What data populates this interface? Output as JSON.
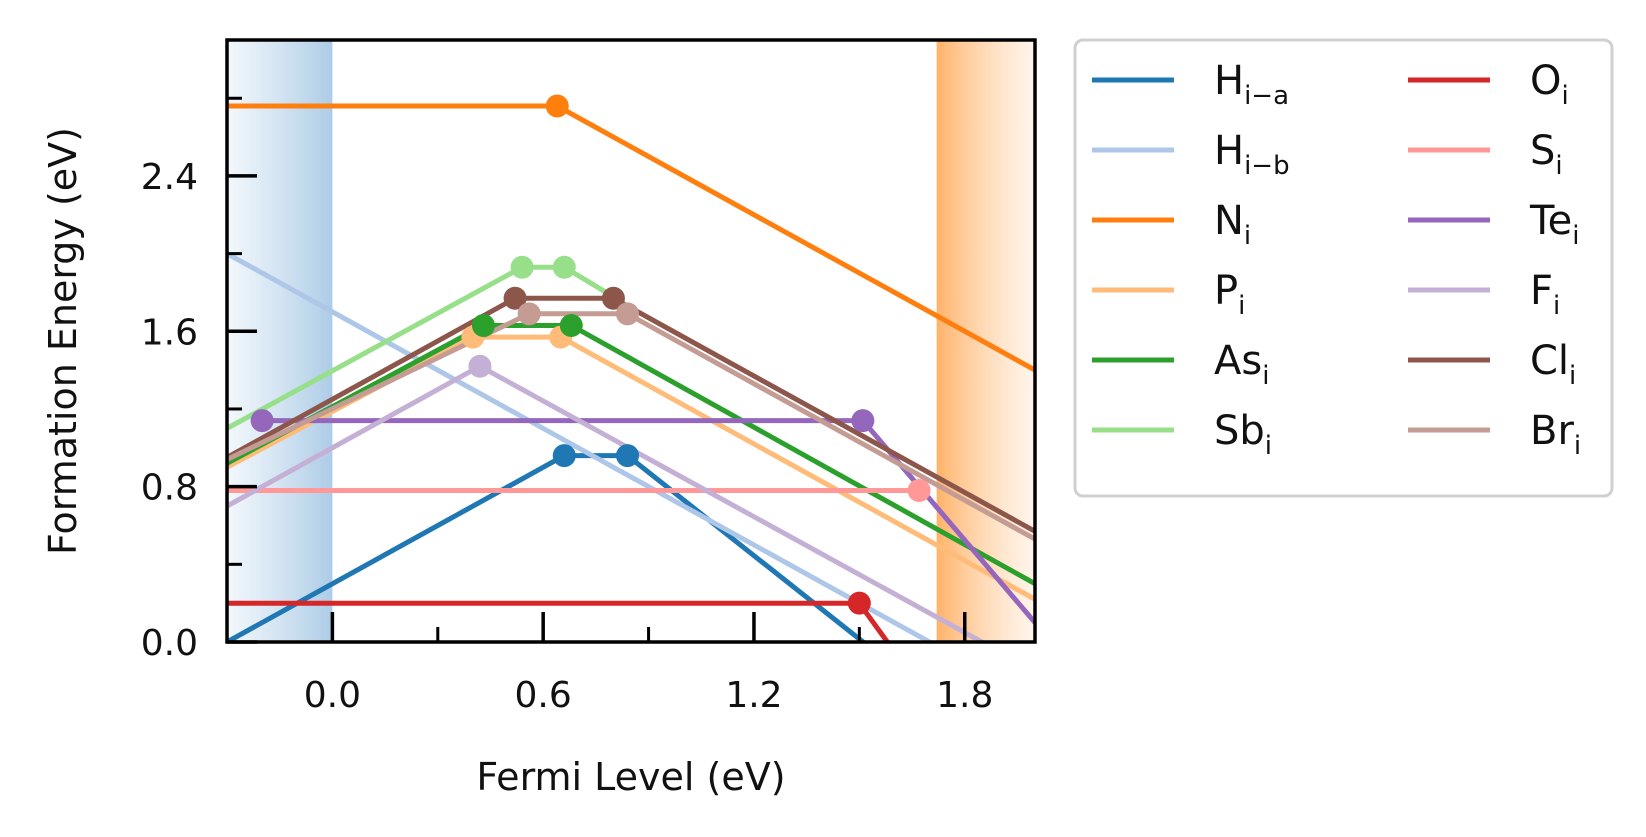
{
  "chart_data": {
    "type": "line",
    "xlabel": "Fermi Level (eV)",
    "ylabel": "Formation Energy (eV)",
    "xlim": [
      -0.3,
      2.0
    ],
    "ylim": [
      0.0,
      3.1
    ],
    "x_ticks": [
      "0.0",
      "0.6",
      "1.2",
      "1.8"
    ],
    "x_tick_values": [
      0.0,
      0.6,
      1.2,
      1.8
    ],
    "y_ticks": [
      "0.0",
      "0.8",
      "1.6",
      "2.4"
    ],
    "y_tick_values": [
      0.0,
      0.8,
      1.6,
      2.4
    ],
    "grid": false,
    "legend": "outside-right, 2 columns",
    "shaded_regions": [
      {
        "region": "valence band",
        "x": [
          -0.3,
          0.0
        ],
        "color": "#aecde7"
      },
      {
        "region": "conduction band",
        "x": [
          1.72,
          2.0
        ],
        "color": "#ffb572"
      }
    ],
    "series": [
      {
        "name": "H",
        "sub": "i−a",
        "color": "#1f77b4",
        "x": [
          -0.3,
          0.66,
          0.84,
          2.0
        ],
        "y": [
          0.0,
          0.96,
          0.96,
          -0.7
        ],
        "markers": [
          [
            0.66,
            0.96
          ],
          [
            0.84,
            0.96
          ]
        ]
      },
      {
        "name": "H",
        "sub": "i−b",
        "color": "#aec7e8",
        "x": [
          -0.3,
          2.0
        ],
        "y": [
          2.0,
          -0.3
        ],
        "markers": []
      },
      {
        "name": "N",
        "sub": "i",
        "color": "#ff7f0e",
        "x": [
          -0.3,
          0.64,
          2.0
        ],
        "y": [
          2.76,
          2.76,
          1.4
        ],
        "markers": [
          [
            0.64,
            2.76
          ]
        ]
      },
      {
        "name": "P",
        "sub": "i",
        "color": "#ffbb78",
        "x": [
          -0.3,
          0.4,
          0.65,
          2.0
        ],
        "y": [
          0.9,
          1.57,
          1.57,
          0.22
        ],
        "markers": [
          [
            0.4,
            1.57
          ],
          [
            0.65,
            1.57
          ]
        ]
      },
      {
        "name": "As",
        "sub": "i",
        "color": "#2ca02c",
        "x": [
          -0.3,
          0.43,
          0.68,
          2.0
        ],
        "y": [
          0.92,
          1.63,
          1.63,
          0.3
        ],
        "markers": [
          [
            0.43,
            1.63
          ],
          [
            0.68,
            1.63
          ]
        ]
      },
      {
        "name": "Sb",
        "sub": "i",
        "color": "#98df8a",
        "x": [
          -0.3,
          0.54,
          0.66,
          0.78
        ],
        "y": [
          1.1,
          1.93,
          1.93,
          1.8
        ],
        "markers": [
          [
            0.54,
            1.93
          ],
          [
            0.66,
            1.93
          ]
        ]
      },
      {
        "name": "O",
        "sub": "i",
        "color": "#d62728",
        "x": [
          -0.3,
          1.5,
          1.7
        ],
        "y": [
          0.2,
          0.2,
          -0.3
        ],
        "markers": [
          [
            1.5,
            0.2
          ]
        ]
      },
      {
        "name": "S",
        "sub": "i",
        "color": "#ff9896",
        "x": [
          -0.3,
          1.67
        ],
        "y": [
          0.78,
          0.78
        ],
        "markers": [
          [
            1.67,
            0.78
          ]
        ]
      },
      {
        "name": "Te",
        "sub": "i",
        "color": "#9467bd",
        "x": [
          -0.2,
          1.51,
          2.0
        ],
        "y": [
          1.14,
          1.14,
          0.1
        ],
        "markers": [
          [
            -0.2,
            1.14
          ],
          [
            1.51,
            1.14
          ]
        ]
      },
      {
        "name": "F",
        "sub": "i",
        "color": "#c5b0d5",
        "x": [
          -0.3,
          0.42,
          2.0
        ],
        "y": [
          0.7,
          1.42,
          -0.15
        ],
        "markers": [
          [
            0.42,
            1.42
          ]
        ]
      },
      {
        "name": "Cl",
        "sub": "i",
        "color": "#8c564b",
        "x": [
          -0.3,
          0.52,
          0.8,
          2.0
        ],
        "y": [
          0.95,
          1.77,
          1.77,
          0.57
        ],
        "markers": [
          [
            0.52,
            1.77
          ],
          [
            0.8,
            1.77
          ]
        ]
      },
      {
        "name": "Br",
        "sub": "i",
        "color": "#c49c94",
        "x": [
          -0.3,
          0.56,
          0.84,
          2.0
        ],
        "y": [
          0.94,
          1.69,
          1.69,
          0.53
        ],
        "markers": [
          [
            0.56,
            1.69
          ],
          [
            0.84,
            1.69
          ]
        ]
      }
    ]
  }
}
